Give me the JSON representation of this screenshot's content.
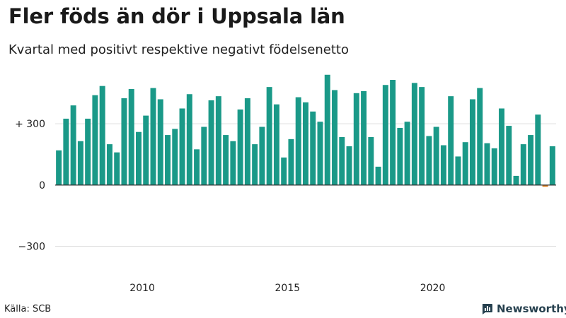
{
  "title": "Fler föds än dör i Uppsala län",
  "subtitle": "Kvartal med positivt respektive negativt födelsenetto",
  "source": "Källa: SCB",
  "brand": "Newsworthy",
  "colors": {
    "positive": "#1a9988",
    "negative": "#e07b15",
    "grid": "#dcdcdc",
    "axis": "#333333",
    "brand": "#27414f"
  },
  "chart_data": {
    "type": "bar",
    "title": "Fler föds än dör i Uppsala län",
    "subtitle": "Kvartal med positivt respektive negativt födelsenetto",
    "xlabel": "",
    "ylabel": "",
    "ylim": [
      -450,
      560
    ],
    "yticks": [
      {
        "value": 300,
        "label": "+ 300"
      },
      {
        "value": 0,
        "label": "0"
      },
      {
        "value": -300,
        "label": "−300"
      }
    ],
    "x_start_year": 2007,
    "periods_per_year": 4,
    "xticks": [
      {
        "year": 2010,
        "label": "2010"
      },
      {
        "year": 2015,
        "label": "2015"
      },
      {
        "year": 2020,
        "label": "2020"
      }
    ],
    "values": [
      170,
      325,
      390,
      215,
      325,
      440,
      485,
      200,
      160,
      425,
      470,
      260,
      340,
      475,
      420,
      245,
      275,
      375,
      445,
      175,
      285,
      415,
      435,
      245,
      215,
      370,
      425,
      200,
      285,
      480,
      395,
      135,
      225,
      430,
      405,
      360,
      310,
      540,
      465,
      235,
      190,
      450,
      460,
      235,
      90,
      490,
      515,
      280,
      310,
      500,
      480,
      240,
      285,
      195,
      435,
      140,
      210,
      420,
      475,
      205,
      180,
      375,
      290,
      45,
      200,
      245,
      345,
      -8,
      190
    ]
  }
}
